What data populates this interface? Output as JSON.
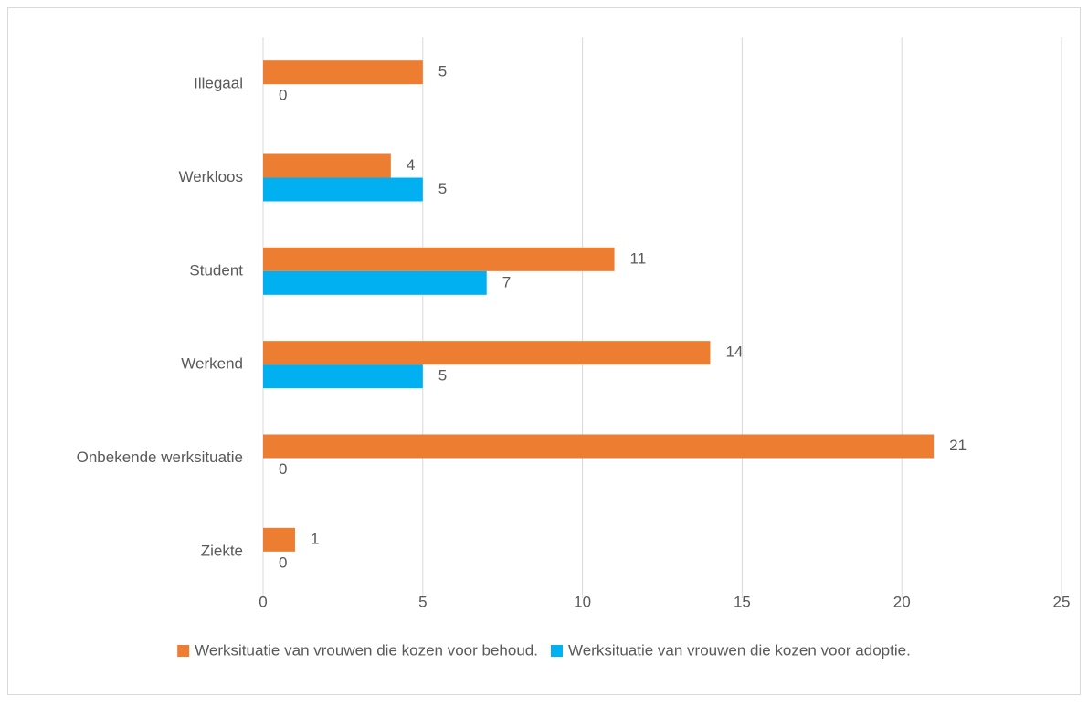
{
  "chart_data": {
    "type": "bar",
    "orientation": "horizontal",
    "categories": [
      "Illegaal",
      "Werkloos",
      "Student",
      "Werkend",
      "Onbekende werksituatie",
      "Ziekte"
    ],
    "series": [
      {
        "name": "Werksituatie van vrouwen die kozen voor behoud.",
        "color": "#ed7d31",
        "values": [
          5,
          4,
          11,
          14,
          21,
          1
        ]
      },
      {
        "name": "Werksituatie van vrouwen die kozen voor adoptie.",
        "color": "#00b0f0",
        "values": [
          0,
          5,
          7,
          5,
          0,
          0
        ]
      }
    ],
    "xlim": [
      0,
      25
    ],
    "xticks": [
      0,
      5,
      10,
      15,
      20,
      25
    ],
    "grid": true,
    "legend": "bottom"
  }
}
